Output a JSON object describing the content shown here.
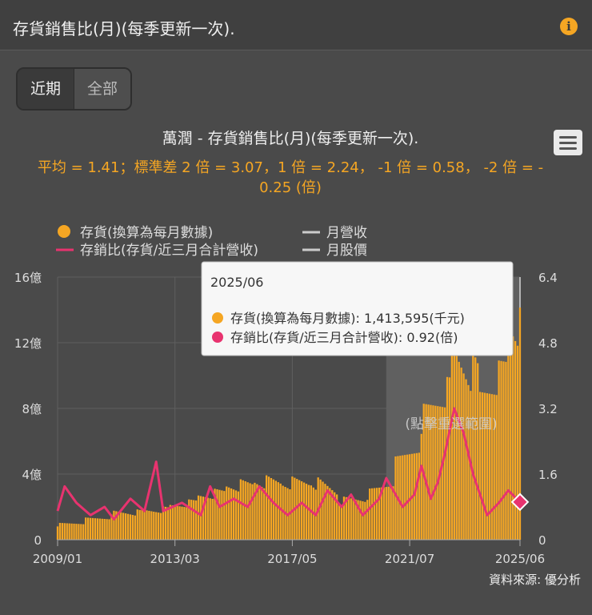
{
  "header": {
    "title": "存貨銷售比(月)(每季更新一次).",
    "info_icon": "info-icon"
  },
  "tabs": [
    {
      "label": "近期",
      "active": true
    },
    {
      "label": "全部",
      "active": false
    }
  ],
  "menu_icon": "hamburger-menu-icon",
  "source": "資料來源: 優分析",
  "colors": {
    "inventory": "#f5a623",
    "ratio": "#e8336f",
    "muted_series": "#cccccc",
    "background": "#4a4a4a"
  },
  "chart_data": {
    "type": "bar",
    "title": "萬潤 - 存貨銷售比(月)(每季更新一次).",
    "subtitle": "平均 = 1.41；標準差 2 倍 = 3.07，1 倍 = 2.24， -1 倍 = 0.58， -2 倍 = -0.25 (倍)",
    "legend": [
      {
        "name": "存貨(換算為每月數據)",
        "symbol": "dot"
      },
      {
        "name": "月營收",
        "symbol": "line"
      },
      {
        "name": "存銷比(存貨/近三月合計營收)",
        "symbol": "line"
      },
      {
        "name": "月股價",
        "symbol": "line"
      }
    ],
    "x_tick_labels": [
      "2009/01",
      "2013/03",
      "2017/05",
      "2021/07",
      "2025/06"
    ],
    "y_left_ticks": [
      "0",
      "4億",
      "8億",
      "12億",
      "16億"
    ],
    "y_right_ticks": [
      "0",
      "1.6",
      "3.2",
      "4.8",
      "6.4"
    ],
    "y_left_range": [
      0,
      16
    ],
    "y_right_range": [
      0,
      6.4
    ],
    "x_range": [
      "2009/01",
      "2025/06"
    ],
    "grid": true,
    "legend_position": "top",
    "selection_label": "(點擊重選範圍)",
    "tooltip": {
      "date": "2025/06",
      "lines": [
        "存貨(換算為每月數據): 1,413,595(千元)",
        "存銷比(存貨/近三月合計營收): 0.92(倍)"
      ]
    },
    "series": [
      {
        "name": "存貨(換算為每月數據)",
        "unit": "億",
        "values_yearly_2009_2025": [
          0.9,
          1.2,
          1.6,
          1.7,
          2.0,
          2.6,
          3.2,
          3.5,
          3.4,
          3.5,
          2.3,
          2.7,
          4.5,
          7.5,
          11.0,
          8.5,
          12.5
        ]
      },
      {
        "name": "存銷比(存貨/近三月合計營收)",
        "unit": "倍",
        "points": [
          [
            "2009/01",
            0.7
          ],
          [
            "2009/04",
            1.3
          ],
          [
            "2009/09",
            0.9
          ],
          [
            "2010/03",
            0.6
          ],
          [
            "2010/09",
            0.8
          ],
          [
            "2011/01",
            0.5
          ],
          [
            "2011/08",
            1.0
          ],
          [
            "2012/02",
            0.7
          ],
          [
            "2012/07",
            1.9
          ],
          [
            "2012/10",
            0.7
          ],
          [
            "2013/06",
            0.9
          ],
          [
            "2014/02",
            0.6
          ],
          [
            "2014/06",
            1.3
          ],
          [
            "2014/10",
            0.8
          ],
          [
            "2015/04",
            1.0
          ],
          [
            "2015/10",
            0.8
          ],
          [
            "2016/03",
            1.3
          ],
          [
            "2016/09",
            0.9
          ],
          [
            "2017/03",
            0.6
          ],
          [
            "2017/09",
            0.9
          ],
          [
            "2018/03",
            0.6
          ],
          [
            "2018/08",
            1.2
          ],
          [
            "2019/02",
            0.8
          ],
          [
            "2019/06",
            1.1
          ],
          [
            "2019/11",
            0.6
          ],
          [
            "2020/06",
            1.0
          ],
          [
            "2020/09",
            1.5
          ],
          [
            "2021/04",
            0.8
          ],
          [
            "2021/09",
            1.1
          ],
          [
            "2021/12",
            1.8
          ],
          [
            "2022/04",
            1.0
          ],
          [
            "2022/07",
            1.4
          ],
          [
            "2022/10",
            2.1
          ],
          [
            "2023/02",
            3.2
          ],
          [
            "2023/06",
            2.6
          ],
          [
            "2023/10",
            1.6
          ],
          [
            "2024/04",
            0.6
          ],
          [
            "2024/09",
            0.9
          ],
          [
            "2025/01",
            1.2
          ],
          [
            "2025/06",
            0.92
          ]
        ]
      }
    ]
  }
}
